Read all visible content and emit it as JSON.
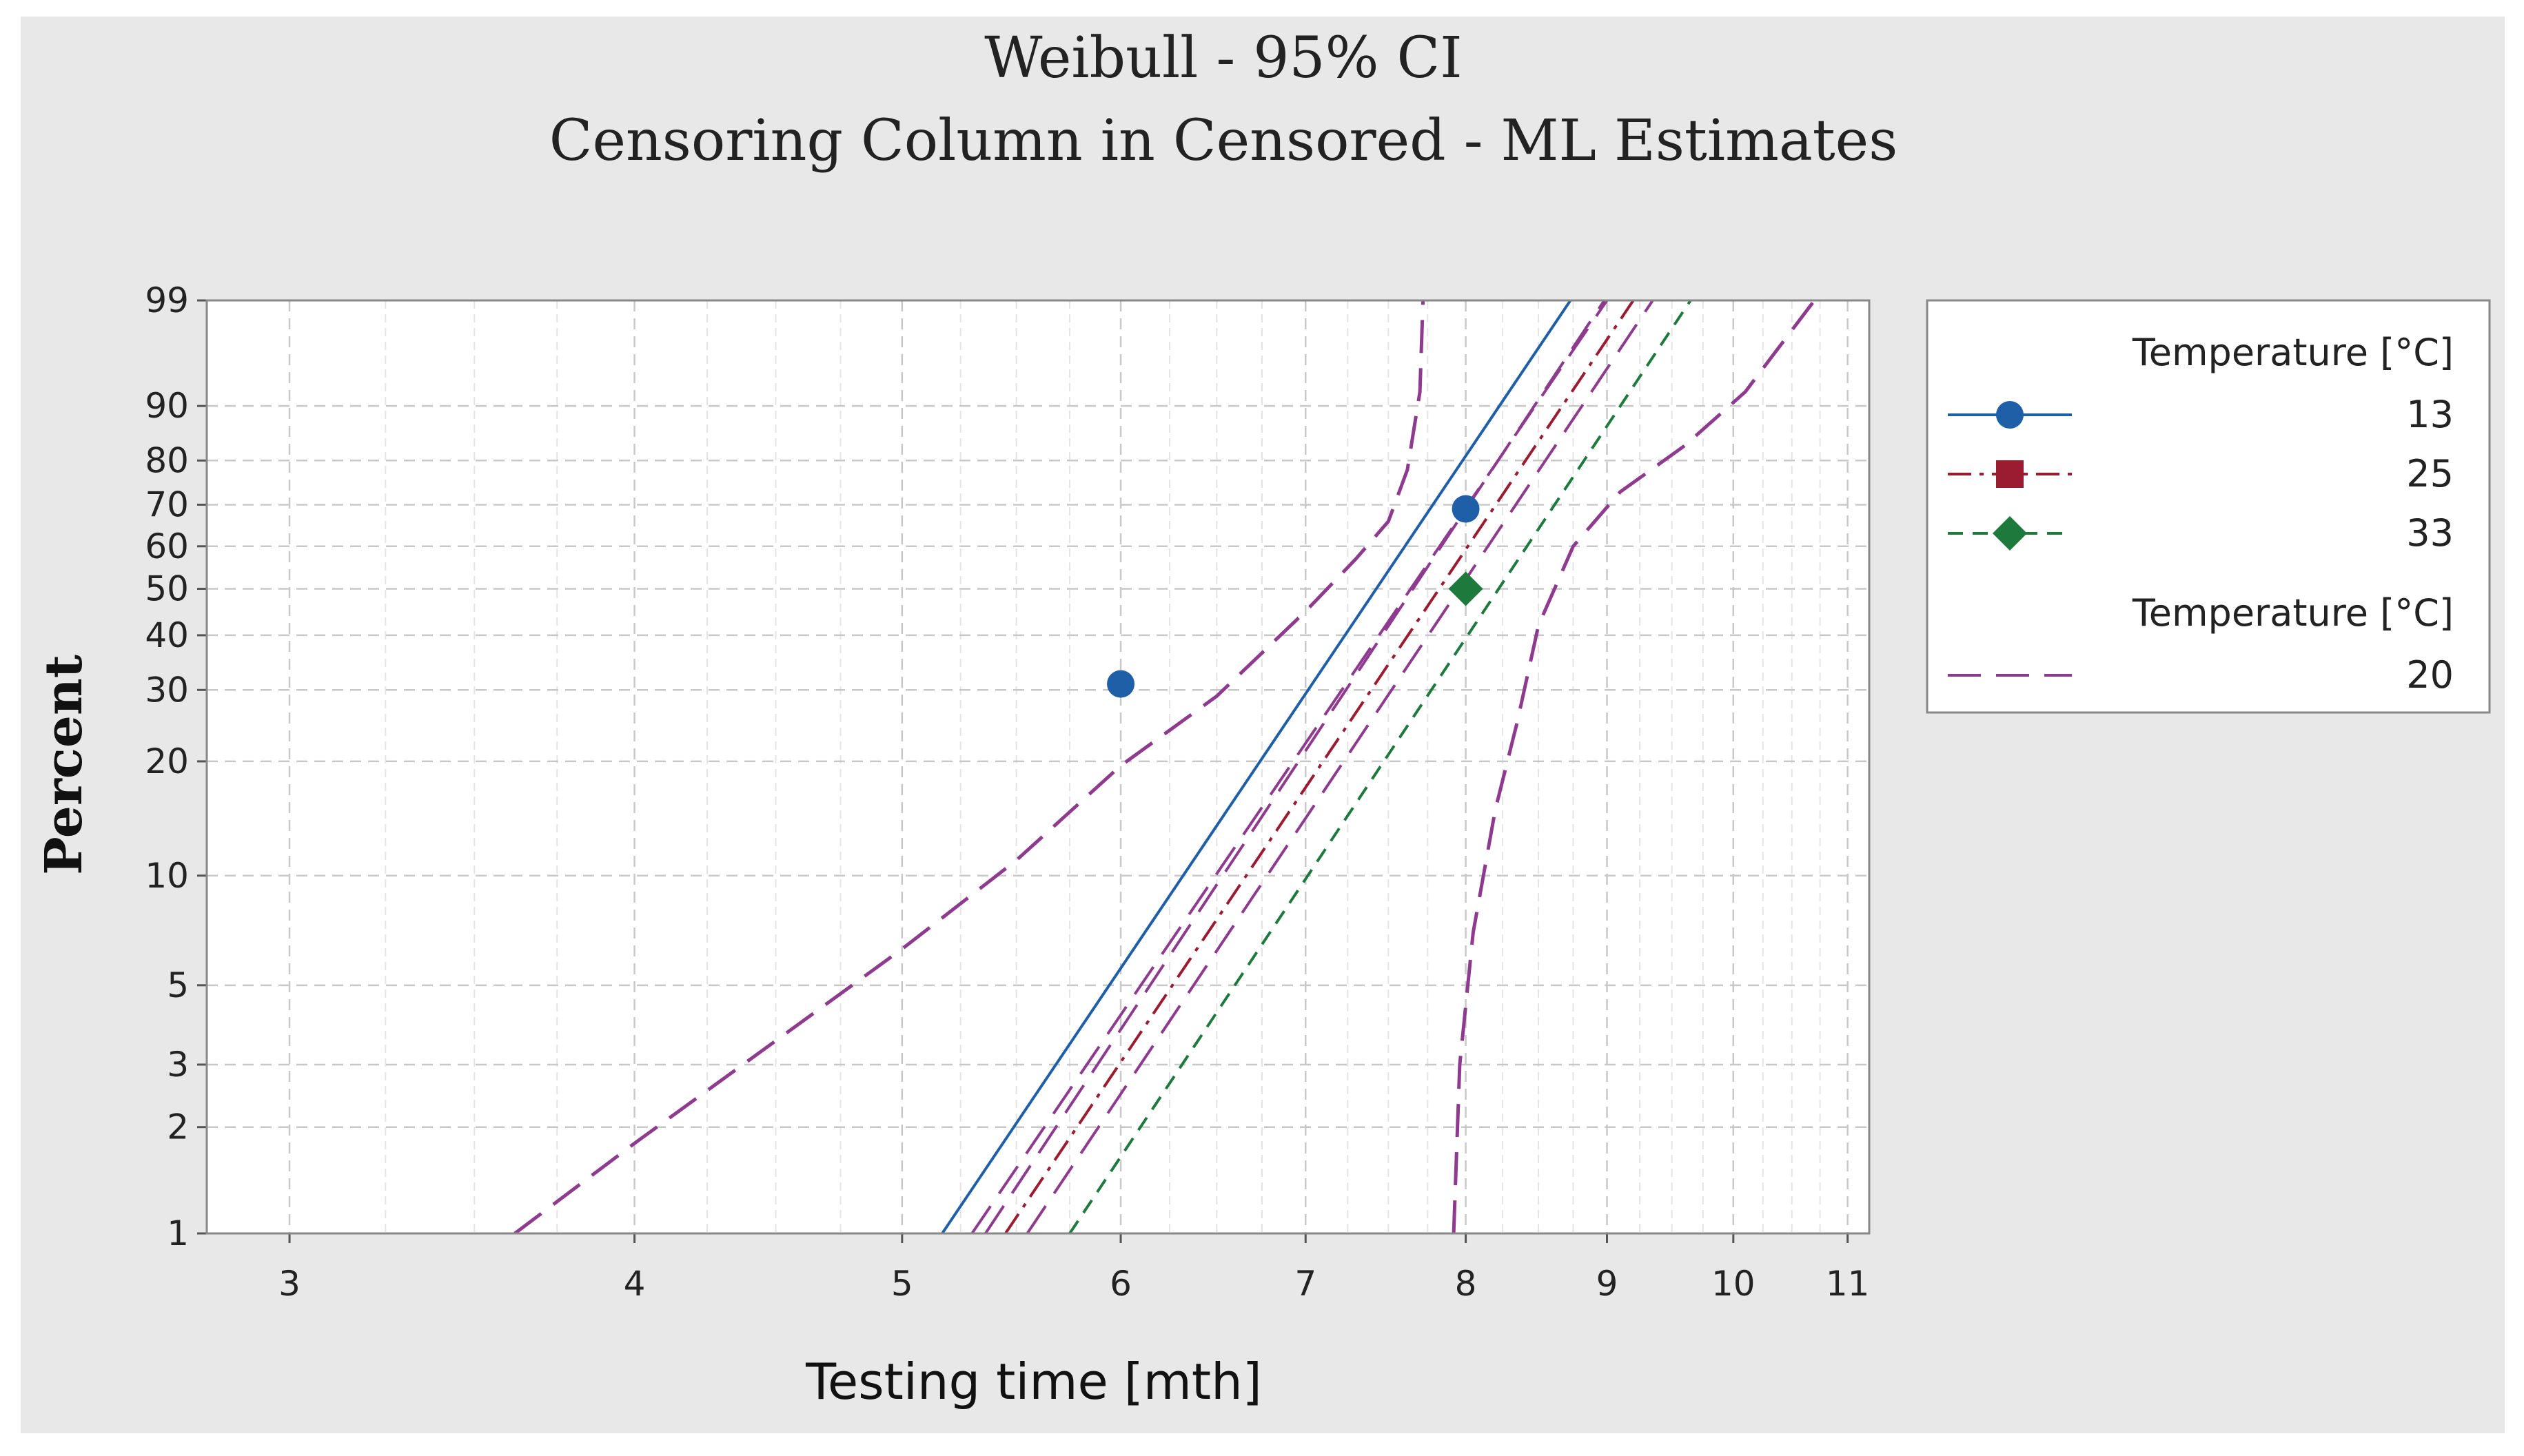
{
  "chart_data": {
    "type": "line",
    "title": "Weibull - 95% CI",
    "subtitle": "Censoring Column in Censored - ML Estimates",
    "xlabel": "Testing time [mth]",
    "ylabel": "Percent",
    "x_scale": "log",
    "y_scale": "weibull",
    "xlim": [
      2.8,
      11.2
    ],
    "ylim": [
      1,
      99
    ],
    "x_ticks": [
      "3",
      "4",
      "5",
      "6",
      "7",
      "8",
      "9",
      "10",
      "11"
    ],
    "y_ticks": [
      "1",
      "2",
      "3",
      "5",
      "10",
      "20",
      "30",
      "40",
      "50",
      "60",
      "70",
      "80",
      "90",
      "99"
    ],
    "grid": true,
    "legend_position": "right",
    "legend_groups": [
      {
        "title": "Temperature [°C]",
        "entries": [
          "13",
          "25",
          "33"
        ]
      },
      {
        "title": "Temperature [°C]",
        "entries": [
          "20"
        ]
      }
    ],
    "series": [
      {
        "name": "13",
        "color": "#1f5fa8",
        "dash": "solid",
        "marker": "circle",
        "points": [
          {
            "x": 6,
            "y": 31
          },
          {
            "x": 8,
            "y": 69
          }
        ],
        "fit": [
          {
            "x": 5.17,
            "y": 1
          },
          {
            "x": 8.73,
            "y": 99
          }
        ]
      },
      {
        "name": "25",
        "color": "#9b1b30",
        "dash": "dashdot",
        "marker": "square",
        "points": [],
        "fit": [
          {
            "x": 5.45,
            "y": 1
          },
          {
            "x": 9.2,
            "y": 99
          }
        ]
      },
      {
        "name": "33",
        "color": "#1e7a3c",
        "dash": "dashed",
        "marker": "diamond",
        "points": [
          {
            "x": 8,
            "y": 50
          }
        ],
        "fit": [
          {
            "x": 5.75,
            "y": 1
          },
          {
            "x": 9.65,
            "y": 99
          }
        ]
      },
      {
        "name": "20",
        "color": "#8e3a8e",
        "dash": "longdash",
        "marker": "none",
        "points": [],
        "fit": [
          {
            "x": 5.36,
            "y": 1
          },
          {
            "x": 8.98,
            "y": 99
          }
        ],
        "extra_lines": [
          [
            {
              "x": 5.3,
              "y": 1
            },
            {
              "x": 9.0,
              "y": 99
            }
          ],
          [
            {
              "x": 5.55,
              "y": 1
            },
            {
              "x": 9.35,
              "y": 99
            }
          ]
        ],
        "ci_lower": [
          {
            "x": 3.62,
            "y": 1
          },
          {
            "x": 4.0,
            "y": 1.8
          },
          {
            "x": 4.5,
            "y": 3.5
          },
          {
            "x": 5.0,
            "y": 6.3
          },
          {
            "x": 5.5,
            "y": 11
          },
          {
            "x": 6.0,
            "y": 19.5
          },
          {
            "x": 6.5,
            "y": 29
          },
          {
            "x": 7.0,
            "y": 45
          },
          {
            "x": 7.3,
            "y": 57
          },
          {
            "x": 7.5,
            "y": 66
          },
          {
            "x": 7.62,
            "y": 78
          },
          {
            "x": 7.7,
            "y": 92
          },
          {
            "x": 7.72,
            "y": 99
          }
        ],
        "ci_upper": [
          {
            "x": 7.92,
            "y": 1
          },
          {
            "x": 7.96,
            "y": 3
          },
          {
            "x": 8.05,
            "y": 7
          },
          {
            "x": 8.2,
            "y": 15
          },
          {
            "x": 8.35,
            "y": 25
          },
          {
            "x": 8.5,
            "y": 42
          },
          {
            "x": 8.75,
            "y": 60
          },
          {
            "x": 9.1,
            "y": 73
          },
          {
            "x": 9.6,
            "y": 83
          },
          {
            "x": 10.1,
            "y": 92
          },
          {
            "x": 10.7,
            "y": 99
          }
        ]
      }
    ]
  }
}
